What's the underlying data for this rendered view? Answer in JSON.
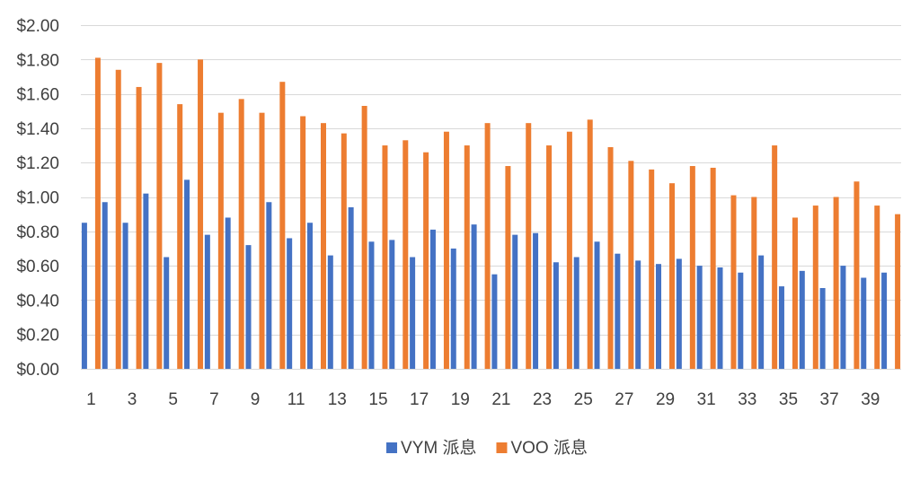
{
  "chart_data": {
    "type": "bar",
    "title": "",
    "xlabel": "",
    "ylabel": "",
    "ylim": [
      0,
      2.0
    ],
    "y_ticks": [
      "$0.00",
      "$0.20",
      "$0.40",
      "$0.60",
      "$0.80",
      "$1.00",
      "$1.20",
      "$1.40",
      "$1.60",
      "$1.80",
      "$2.00"
    ],
    "y_tick_values": [
      0,
      0.2,
      0.4,
      0.6,
      0.8,
      1.0,
      1.2,
      1.4,
      1.6,
      1.8,
      2.0
    ],
    "x_tick_labels": [
      "1",
      "3",
      "5",
      "7",
      "9",
      "11",
      "13",
      "15",
      "17",
      "19",
      "21",
      "23",
      "25",
      "27",
      "29",
      "31",
      "33",
      "35",
      "37",
      "39"
    ],
    "categories": [
      "1",
      "2",
      "3",
      "4",
      "5",
      "6",
      "7",
      "8",
      "9",
      "10",
      "11",
      "12",
      "13",
      "14",
      "15",
      "16",
      "17",
      "18",
      "19",
      "20",
      "21",
      "22",
      "23",
      "24",
      "25",
      "26",
      "27",
      "28",
      "29",
      "30",
      "31",
      "32",
      "33",
      "34",
      "35",
      "36",
      "37",
      "38",
      "39",
      "40"
    ],
    "grid": true,
    "legend_position": "bottom",
    "series": [
      {
        "name": "VYM 派息",
        "color": "#4472c4",
        "values": [
          0.85,
          0.97,
          0.85,
          1.02,
          0.65,
          1.1,
          0.78,
          0.88,
          0.72,
          0.97,
          0.76,
          0.85,
          0.66,
          0.94,
          0.74,
          0.75,
          0.65,
          0.81,
          0.7,
          0.84,
          0.55,
          0.78,
          0.79,
          0.62,
          0.65,
          0.74,
          0.67,
          0.63,
          0.61,
          0.64,
          0.6,
          0.59,
          0.56,
          0.66,
          0.48,
          0.57,
          0.47,
          0.6,
          0.53,
          0.56
        ]
      },
      {
        "name": "VOO 派息",
        "color": "#ed7d31",
        "values": [
          1.81,
          1.74,
          1.64,
          1.78,
          1.54,
          1.8,
          1.49,
          1.57,
          1.49,
          1.67,
          1.47,
          1.43,
          1.37,
          1.53,
          1.3,
          1.33,
          1.26,
          1.38,
          1.3,
          1.43,
          1.18,
          1.43,
          1.3,
          1.38,
          1.45,
          1.29,
          1.21,
          1.16,
          1.08,
          1.18,
          1.17,
          1.01,
          1.0,
          1.3,
          0.88,
          0.95,
          1.0,
          1.09,
          0.95,
          0.9
        ]
      }
    ]
  }
}
